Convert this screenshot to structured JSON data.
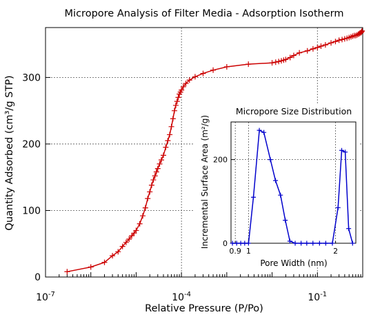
{
  "chart_data": [
    {
      "type": "line",
      "title": "Micropore Analysis of Filter Media - Adsorption Isotherm",
      "xlabel": "Relative Pressure (P/Po)",
      "ylabel": "Quantity Adsorbed (cm³/g STP)",
      "xscale": "log",
      "xlim": [
        1e-07,
        1
      ],
      "ylim": [
        0,
        375
      ],
      "x_ticks": [
        {
          "value": 1e-07,
          "base": "10",
          "exp": "-7"
        },
        {
          "value": 0.0001,
          "base": "10",
          "exp": "-4"
        },
        {
          "value": 0.1,
          "base": "10",
          "exp": "-1"
        }
      ],
      "y_ticks": [
        0,
        100,
        200,
        300
      ],
      "grid": "dashed at major ticks",
      "color": "#cc0000",
      "marker": "+",
      "series": [
        {
          "x": [
            3e-07,
            1e-06,
            2e-06,
            3e-06,
            4e-06,
            5e-06,
            6e-06,
            7e-06,
            8e-06,
            9e-06,
            1e-05,
            1.2e-05,
            1.4e-05,
            1.6e-05,
            1.8e-05,
            2e-05,
            2.2e-05,
            2.4e-05,
            2.6e-05,
            2.8e-05,
            3e-05,
            3.3e-05,
            3.6e-05,
            4e-05,
            4.5e-05,
            5e-05,
            5.5e-05,
            6e-05,
            6.5e-05,
            7e-05,
            7.5e-05,
            8e-05,
            8.5e-05,
            9e-05,
            9.5e-05,
            0.0001,
            0.00011,
            0.000125,
            0.00015,
            0.0002,
            0.0003,
            0.0005,
            0.001,
            0.003,
            0.01,
            0.012,
            0.014,
            0.016,
            0.018,
            0.02,
            0.025,
            0.03,
            0.04,
            0.06,
            0.08,
            0.1,
            0.12,
            0.15,
            0.2,
            0.25,
            0.3,
            0.35,
            0.4,
            0.45,
            0.5,
            0.55,
            0.6,
            0.65,
            0.7,
            0.75,
            0.8,
            0.85,
            0.9,
            0.93,
            0.95,
            0.97
          ],
          "y": [
            8,
            15,
            22,
            32,
            38,
            46,
            52,
            57,
            62,
            66,
            70,
            80,
            92,
            104,
            118,
            128,
            138,
            146,
            152,
            158,
            163,
            170,
            176,
            183,
            195,
            205,
            214,
            226,
            238,
            250,
            258,
            264,
            270,
            275,
            278,
            281,
            286,
            291,
            296,
            301,
            306,
            311,
            316,
            320,
            322,
            323,
            324,
            325,
            326,
            327,
            330,
            333,
            337,
            340,
            343,
            345,
            347,
            349,
            352,
            354,
            356,
            357,
            358,
            359,
            360,
            361,
            362,
            363,
            363,
            364,
            365,
            366,
            367,
            368,
            369,
            370
          ]
        }
      ]
    },
    {
      "type": "line",
      "title": "Micropore Size Distribution",
      "xlabel": "Pore Width (nm)",
      "ylabel": "Incremental Surface Area (m²/g)",
      "xscale": "log",
      "xlim": [
        0.87,
        2.35
      ],
      "ylim": [
        0,
        290
      ],
      "x_ticks": [
        {
          "value": 0.9,
          "label": "0.9"
        },
        {
          "value": 1,
          "label": "1"
        },
        {
          "value": 2,
          "label": "2"
        }
      ],
      "y_ticks": [
        0,
        200
      ],
      "grid": "dashed at major ticks",
      "color": "#0000cc",
      "marker": "+",
      "series": [
        {
          "x": [
            0.88,
            0.91,
            0.94,
            0.97,
            1.0,
            1.04,
            1.09,
            1.13,
            1.19,
            1.24,
            1.29,
            1.34,
            1.39,
            1.45,
            1.52,
            1.59,
            1.67,
            1.76,
            1.85,
            1.95,
            2.04,
            2.1,
            2.16,
            2.22,
            2.29
          ],
          "y": [
            0,
            0,
            0,
            0,
            0,
            110,
            270,
            265,
            200,
            150,
            115,
            55,
            5,
            0,
            0,
            0,
            0,
            0,
            0,
            0,
            85,
            222,
            218,
            35,
            0
          ]
        }
      ]
    }
  ]
}
